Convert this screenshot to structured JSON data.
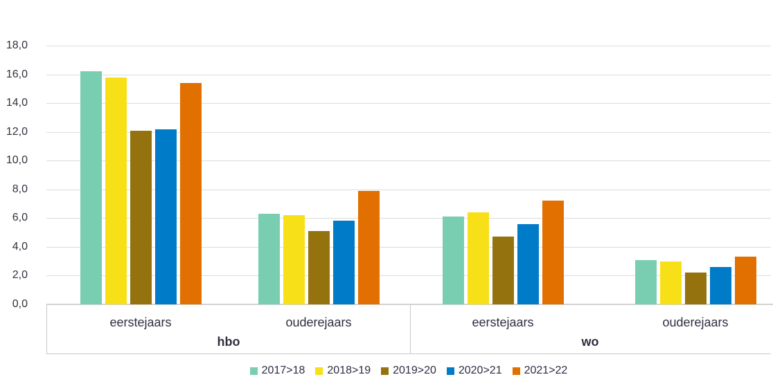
{
  "chart_data": {
    "type": "bar",
    "grid": true,
    "legend_position": "bottom",
    "decimal_separator": ",",
    "y_axis": {
      "min": 0,
      "max": 18,
      "tick_step": 2,
      "tick_labels": [
        "18,0",
        "16,0",
        "14,0",
        "12,0",
        "10,0",
        "8,0",
        "6,0",
        "4,0",
        "2,0",
        "0,0"
      ]
    },
    "x_axis": {
      "sections": [
        {
          "label": "hbo",
          "categories": [
            "eerstejaars",
            "ouderejaars"
          ]
        },
        {
          "label": "wo",
          "categories": [
            "eerstejaars",
            "ouderejaars"
          ]
        }
      ]
    },
    "group_order": [
      "hbo eerstejaars",
      "hbo ouderejaars",
      "wo eerstejaars",
      "wo ouderejaars"
    ],
    "series": [
      {
        "name": "2017>18",
        "color": "#79CEB1",
        "values": [
          16.2,
          6.3,
          6.1,
          3.1
        ]
      },
      {
        "name": "2018>19",
        "color": "#F7E017",
        "values": [
          15.8,
          6.2,
          6.4,
          3.0
        ]
      },
      {
        "name": "2019>20",
        "color": "#94720D",
        "values": [
          12.1,
          5.1,
          4.7,
          2.2
        ]
      },
      {
        "name": "2020>21",
        "color": "#007BC7",
        "values": [
          12.2,
          5.8,
          5.6,
          2.6
        ]
      },
      {
        "name": "2021>22",
        "color": "#E17000",
        "values": [
          15.4,
          7.9,
          7.2,
          3.3
        ]
      }
    ]
  }
}
